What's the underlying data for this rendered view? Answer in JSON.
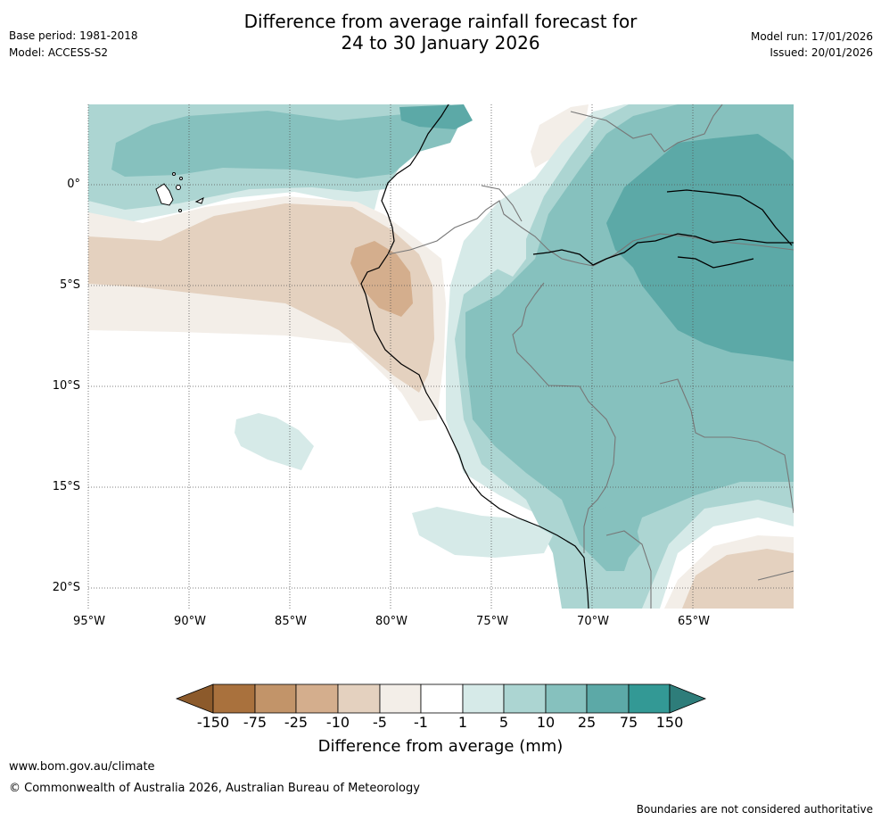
{
  "header": {
    "title_line1": "Difference from average rainfall forecast for",
    "title_line2": "24 to 30 January 2026",
    "base_period": "Base period: 1981-2018",
    "model": "Model: ACCESS-S2",
    "model_run": "Model run: 17/01/2026",
    "issued": "Issued: 20/01/2026"
  },
  "map": {
    "lat_labels": [
      "0°",
      "5°S",
      "10°S",
      "15°S",
      "20°S"
    ],
    "lon_labels": [
      "95°W",
      "90°W",
      "85°W",
      "80°W",
      "75°W",
      "70°W",
      "65°W"
    ],
    "colors": {
      "c_neg150": "#8c5a2b",
      "c_neg75": "#a9713d",
      "c_neg25": "#c29469",
      "c_neg10": "#d4ae8d",
      "c_neg5": "#e4d1bf",
      "c_neg1": "#f3eee8",
      "c_zero": "#ffffff",
      "c_1": "#d6eae8",
      "c_5": "#acd5d2",
      "c_10": "#86c1be",
      "c_25": "#5ca9a7",
      "c_75": "#339995",
      "c_150": "#2e7d7a"
    }
  },
  "colorbar": {
    "labels": [
      "-150",
      "-75",
      "-25",
      "-10",
      "-5",
      "-1",
      "1",
      "5",
      "10",
      "25",
      "75",
      "150"
    ],
    "title": "Difference from average (mm)"
  },
  "footer": {
    "url": "www.bom.gov.au/climate",
    "copyright": "© Commonwealth of Australia 2026, Australian Bureau of Meteorology",
    "disclaimer": "Boundaries are not considered authoritative"
  }
}
